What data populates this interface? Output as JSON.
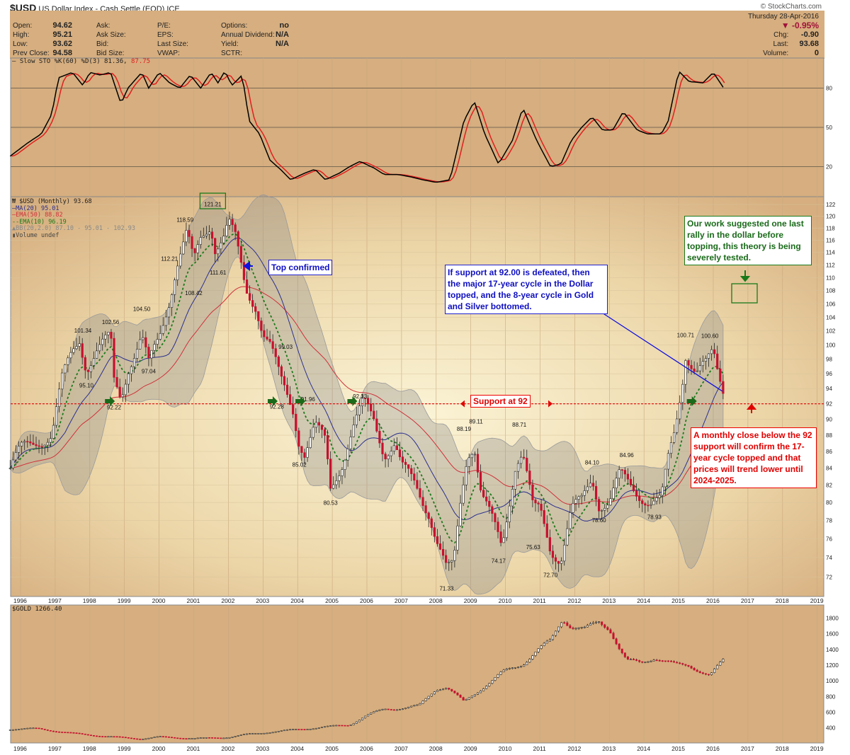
{
  "header": {
    "symbol": "$USD",
    "name": "US Dollar Index - Cash Settle (EOD)",
    "exchange": "ICE",
    "copyright": "© StockCharts.com",
    "open_label": "Open:",
    "open": "94.62",
    "high_label": "High:",
    "high": "95.21",
    "low_label": "Low:",
    "low": "93.62",
    "prev_label": "Prev Close:",
    "prev": "94.58",
    "ask": "Ask:",
    "ask_size": "Ask Size:",
    "bid": "Bid:",
    "bid_size": "Bid Size:",
    "pe": "P/E:",
    "eps": "EPS:",
    "last_size": "Last Size:",
    "vwap": "VWAP:",
    "options_label": "Options:",
    "options": "no",
    "div_label": "Annual Dividend:",
    "div": "N/A",
    "yield_label": "Yield:",
    "yield": "N/A",
    "sctr": "SCTR:",
    "date": "Thursday  28-Apr-2016",
    "pct": "▼ -0.95%",
    "chg_label": "Chg:",
    "chg": "-0.90",
    "last_label": "Last:",
    "last": "93.68",
    "vol_label": "Volume:",
    "vol": "0"
  },
  "colors": {
    "down": "#c8102e",
    "up": "#ffffff",
    "ma20": "#2a2f8f",
    "ema50": "#d0303a",
    "ema10": "#1a7a1a",
    "bb": "#9a9a9a",
    "support": "#e00000",
    "sto_k": "#000000",
    "sto_d": "#e02020"
  },
  "chart_data": [
    {
      "type": "line",
      "title": "Slow STO %K(60) %D(3) 81.36, 87.75",
      "legend_main": "Slow STO %K(60) %D(3) 81.36,",
      "legend_d": "87.75",
      "ylim": [
        0,
        100
      ],
      "yticks": [
        "80",
        "50",
        "20"
      ],
      "ytick_values": [
        80,
        50,
        20
      ],
      "k": [
        [
          1995.7,
          28
        ],
        [
          1996.2,
          38
        ],
        [
          1996.6,
          45
        ],
        [
          1996.9,
          60
        ],
        [
          1997.1,
          88
        ],
        [
          1997.5,
          92
        ],
        [
          1997.8,
          82
        ],
        [
          1998.0,
          92
        ],
        [
          1998.3,
          90
        ],
        [
          1998.6,
          92
        ],
        [
          1998.9,
          68
        ],
        [
          1999.1,
          80
        ],
        [
          1999.5,
          92
        ],
        [
          1999.7,
          80
        ],
        [
          2000.0,
          92
        ],
        [
          2000.3,
          84
        ],
        [
          2000.6,
          80
        ],
        [
          2000.9,
          90
        ],
        [
          2001.2,
          80
        ],
        [
          2001.5,
          92
        ],
        [
          2001.7,
          84
        ],
        [
          2001.9,
          93
        ],
        [
          2002.1,
          82
        ],
        [
          2002.4,
          90
        ],
        [
          2002.6,
          55
        ],
        [
          2002.9,
          45
        ],
        [
          2003.2,
          25
        ],
        [
          2003.5,
          18
        ],
        [
          2003.8,
          10
        ],
        [
          2004.2,
          15
        ],
        [
          2004.5,
          18
        ],
        [
          2004.8,
          10
        ],
        [
          2005.2,
          15
        ],
        [
          2005.5,
          20
        ],
        [
          2005.8,
          24
        ],
        [
          2006.2,
          19
        ],
        [
          2006.5,
          14
        ],
        [
          2006.9,
          14
        ],
        [
          2007.3,
          12
        ],
        [
          2007.6,
          10
        ],
        [
          2008.0,
          8
        ],
        [
          2008.4,
          10
        ],
        [
          2008.8,
          55
        ],
        [
          2009.1,
          70
        ],
        [
          2009.4,
          45
        ],
        [
          2009.8,
          22
        ],
        [
          2010.2,
          40
        ],
        [
          2010.5,
          65
        ],
        [
          2010.9,
          40
        ],
        [
          2011.3,
          20
        ],
        [
          2011.6,
          22
        ],
        [
          2011.9,
          40
        ],
        [
          2012.2,
          50
        ],
        [
          2012.5,
          58
        ],
        [
          2012.8,
          48
        ],
        [
          2013.1,
          48
        ],
        [
          2013.4,
          62
        ],
        [
          2013.8,
          48
        ],
        [
          2014.1,
          45
        ],
        [
          2014.5,
          45
        ],
        [
          2014.7,
          55
        ],
        [
          2015.0,
          93
        ],
        [
          2015.3,
          85
        ],
        [
          2015.7,
          84
        ],
        [
          2016.0,
          92
        ],
        [
          2016.3,
          80
        ]
      ]
    },
    {
      "type": "candlestick",
      "title": "$USD (Monthly) 93.68",
      "legend": [
        "MA(20) 95.01",
        "EMA(50) 88.82",
        "EMA(10) 96.19",
        "BB(20,2.0) 87.10 - 95.01 - 102.93",
        "Volume undef"
      ],
      "scale": "log",
      "ylim": [
        71,
        123
      ],
      "yticks": [
        "122",
        "120",
        "118",
        "116",
        "114",
        "112",
        "110",
        "108",
        "106",
        "104",
        "102",
        "100",
        "98",
        "96",
        "94",
        "92",
        "90",
        "88",
        "86",
        "84",
        "82",
        "80",
        "78",
        "76",
        "74",
        "72"
      ],
      "xticks": [
        "1996",
        "1997",
        "1998",
        "1999",
        "2000",
        "2001",
        "2002",
        "2003",
        "2004",
        "2005",
        "2006",
        "2007",
        "2008",
        "2009",
        "2010",
        "2011",
        "2012",
        "2013",
        "2014",
        "2015",
        "2016",
        "2017",
        "2018",
        "2019"
      ],
      "closes": [
        [
          1995.7,
          84
        ],
        [
          1996.0,
          86
        ],
        [
          1996.5,
          87.5
        ],
        [
          1996.9,
          88
        ],
        [
          1997.2,
          95
        ],
        [
          1997.5,
          99
        ],
        [
          1997.7,
          101
        ],
        [
          1997.9,
          97
        ],
        [
          1998.2,
          99
        ],
        [
          1998.6,
          101
        ],
        [
          1998.7,
          95
        ],
        [
          1998.9,
          93
        ],
        [
          1999.1,
          97
        ],
        [
          1999.5,
          101
        ],
        [
          1999.7,
          97
        ],
        [
          2000.0,
          101
        ],
        [
          2000.3,
          107
        ],
        [
          2000.5,
          112
        ],
        [
          2000.8,
          117
        ],
        [
          2001.0,
          112
        ],
        [
          2001.2,
          116
        ],
        [
          2001.5,
          119
        ],
        [
          2001.6,
          115
        ],
        [
          2001.9,
          117
        ],
        [
          2002.0,
          119
        ],
        [
          2002.2,
          116
        ],
        [
          2002.5,
          108
        ],
        [
          2002.8,
          106
        ],
        [
          2003.0,
          102
        ],
        [
          2003.2,
          100
        ],
        [
          2003.5,
          95
        ],
        [
          2003.7,
          93
        ],
        [
          2003.9,
          91
        ],
        [
          2004.0,
          88
        ],
        [
          2004.2,
          86
        ],
        [
          2004.5,
          89
        ],
        [
          2004.8,
          87
        ],
        [
          2004.95,
          81.5
        ],
        [
          2005.3,
          85
        ],
        [
          2005.6,
          89
        ],
        [
          2005.9,
          92
        ],
        [
          2006.2,
          90
        ],
        [
          2006.5,
          86
        ],
        [
          2006.8,
          87
        ],
        [
          2007.0,
          84
        ],
        [
          2007.4,
          82
        ],
        [
          2007.8,
          79
        ],
        [
          2008.0,
          76
        ],
        [
          2008.3,
          72.5
        ],
        [
          2008.5,
          73
        ],
        [
          2008.7,
          80
        ],
        [
          2008.9,
          86
        ],
        [
          2009.1,
          87
        ],
        [
          2009.3,
          81
        ],
        [
          2009.7,
          77
        ],
        [
          2009.9,
          75
        ],
        [
          2010.3,
          85
        ],
        [
          2010.5,
          86
        ],
        [
          2010.8,
          79
        ],
        [
          2011.0,
          79
        ],
        [
          2011.3,
          75
        ],
        [
          2011.6,
          74
        ],
        [
          2011.9,
          79
        ],
        [
          2012.2,
          80
        ],
        [
          2012.5,
          83
        ],
        [
          2012.7,
          80
        ],
        [
          2013.0,
          80
        ],
        [
          2013.3,
          83
        ],
        [
          2013.6,
          82
        ],
        [
          2013.9,
          81
        ],
        [
          2014.2,
          80
        ],
        [
          2014.5,
          80
        ],
        [
          2014.7,
          85
        ],
        [
          2014.9,
          89
        ],
        [
          2015.1,
          95
        ],
        [
          2015.2,
          99
        ],
        [
          2015.5,
          96
        ],
        [
          2015.8,
          97
        ],
        [
          2016.0,
          99
        ],
        [
          2016.1,
          97
        ],
        [
          2016.3,
          94
        ]
      ],
      "price_labels": [
        [
          "101.34",
          1997.8,
          101.34,
          "a"
        ],
        [
          "95.10",
          1997.9,
          95.1,
          "b"
        ],
        [
          "102.56",
          1998.6,
          102.56,
          "a"
        ],
        [
          "92.22",
          1998.7,
          92.22,
          "b"
        ],
        [
          "104.50",
          1999.5,
          104.5,
          "a"
        ],
        [
          "97.04",
          1999.7,
          97.04,
          "b"
        ],
        [
          "112.21",
          2000.3,
          112.21,
          "a"
        ],
        [
          "118.59",
          2000.75,
          118.59,
          "a"
        ],
        [
          "108.42",
          2001.0,
          108.42,
          "b"
        ],
        [
          "121.21",
          2001.55,
          121.21,
          "a"
        ],
        [
          "111.61",
          2001.7,
          111.61,
          "b"
        ],
        [
          "99.03",
          2003.65,
          99.03,
          "a"
        ],
        [
          "92.28",
          2003.4,
          92.28,
          "b"
        ],
        [
          "91.96",
          2004.3,
          91.96,
          "a"
        ],
        [
          "85.02",
          2004.05,
          85.02,
          "b"
        ],
        [
          "80.53",
          2004.95,
          80.53,
          "b"
        ],
        [
          "92.33",
          2005.8,
          92.33,
          "a"
        ],
        [
          "88.19",
          2008.8,
          88.19,
          "a"
        ],
        [
          "89.11",
          2009.15,
          89.11,
          "a"
        ],
        [
          "71.33",
          2008.3,
          71.33,
          "b"
        ],
        [
          "74.17",
          2009.8,
          74.17,
          "b"
        ],
        [
          "88.71",
          2010.4,
          88.71,
          "a"
        ],
        [
          "75.63",
          2010.8,
          75.63,
          "b"
        ],
        [
          "72.70",
          2011.3,
          72.7,
          "b"
        ],
        [
          "84.10",
          2012.5,
          84.1,
          "a"
        ],
        [
          "78.60",
          2012.7,
          78.6,
          "b"
        ],
        [
          "84.96",
          2013.5,
          84.96,
          "a"
        ],
        [
          "78.93",
          2014.3,
          78.93,
          "b"
        ],
        [
          "100.71",
          2015.2,
          100.71,
          "a"
        ],
        [
          "100.60",
          2015.9,
          100.6,
          "a"
        ]
      ],
      "support_level": 92,
      "support_label": "Support at 92",
      "annotations": {
        "top": "Top confirmed",
        "cycle": "If support at 92.00 is defeated, then the major 17-year cycle in the Dollar topped, and the 8-year cycle in Gold and Silver bottomed.",
        "rally": "Our work suggested one last rally in the dollar before topping, this theory is being severely tested.",
        "close": "A monthly close below the 92 support will confirm the 17-year cycle topped and that prices will trend lower until 2024-2025."
      },
      "green_arrows": [
        1998.6,
        2003.3,
        2004.1,
        2005.6,
        2015.4
      ]
    },
    {
      "type": "candlestick",
      "title": "$GOLD 1266.40",
      "ylim": [
        250,
        1950
      ],
      "yticks": [
        "1800",
        "1600",
        "1400",
        "1200",
        "1000",
        "800",
        "600",
        "400"
      ],
      "ytick_values": [
        1800,
        1600,
        1400,
        1200,
        1000,
        800,
        600,
        400
      ],
      "xticks": [
        "1996",
        "1997",
        "1998",
        "1999",
        "2000",
        "2001",
        "2002",
        "2003",
        "2004",
        "2005",
        "2006",
        "2007",
        "2008",
        "2009",
        "2010",
        "2011",
        "2012",
        "2013",
        "2014",
        "2015",
        "2016",
        "2017",
        "2018",
        "2019"
      ],
      "closes": [
        [
          1995.7,
          385
        ],
        [
          1996.5,
          390
        ],
        [
          1997.5,
          330
        ],
        [
          1998.5,
          290
        ],
        [
          1999.5,
          260
        ],
        [
          2000.0,
          285
        ],
        [
          2001.0,
          265
        ],
        [
          2002.0,
          280
        ],
        [
          2002.5,
          315
        ],
        [
          2003.5,
          360
        ],
        [
          2004.5,
          400
        ],
        [
          2005.5,
          440
        ],
        [
          2006.0,
          560
        ],
        [
          2006.5,
          640
        ],
        [
          2007.0,
          650
        ],
        [
          2007.5,
          680
        ],
        [
          2008.0,
          900
        ],
        [
          2008.3,
          920
        ],
        [
          2008.8,
          730
        ],
        [
          2009.3,
          900
        ],
        [
          2009.9,
          1100
        ],
        [
          2010.5,
          1220
        ],
        [
          2010.9,
          1380
        ],
        [
          2011.3,
          1500
        ],
        [
          2011.65,
          1800
        ],
        [
          2011.9,
          1700
        ],
        [
          2012.3,
          1650
        ],
        [
          2012.7,
          1750
        ],
        [
          2013.0,
          1680
        ],
        [
          2013.3,
          1400
        ],
        [
          2013.5,
          1250
        ],
        [
          2013.9,
          1230
        ],
        [
          2014.3,
          1300
        ],
        [
          2014.9,
          1200
        ],
        [
          2015.3,
          1200
        ],
        [
          2015.9,
          1060
        ],
        [
          2016.1,
          1160
        ],
        [
          2016.3,
          1266
        ]
      ]
    }
  ]
}
